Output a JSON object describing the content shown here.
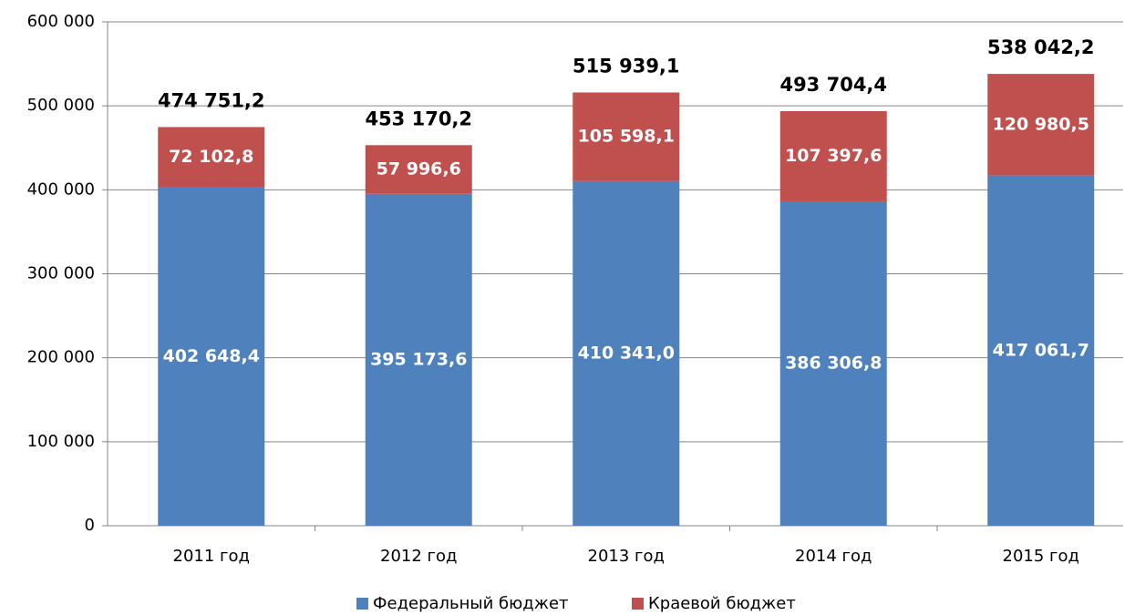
{
  "chart_data": {
    "type": "stacked_bar",
    "categories": [
      "2011 год",
      "2012 год",
      "2013 год",
      "2014 год",
      "2015 год"
    ],
    "series": [
      {
        "name": "Федеральный бюджет",
        "color": "#4f81bd",
        "values": [
          402648.4,
          395173.6,
          410341.0,
          386306.8,
          417061.7
        ],
        "value_labels": [
          "402 648,4",
          "395 173,6",
          "410 341,0",
          "386 306,8",
          "417 061,7"
        ]
      },
      {
        "name": "Краевой бюджет",
        "color": "#c0504d",
        "values": [
          72102.8,
          57996.6,
          105598.1,
          107397.6,
          120980.5
        ],
        "value_labels": [
          "72 102,8",
          "57 996,6",
          "105 598,1",
          "107 397,6",
          "120 980,5"
        ]
      }
    ],
    "totals": [
      474751.2,
      453170.2,
      515939.1,
      493704.4,
      538042.2
    ],
    "total_labels": [
      "474 751,2",
      "453 170,2",
      "515 939,1",
      "493 704,4",
      "538 042,2"
    ],
    "ylim": [
      0,
      600000
    ],
    "yticks": [
      0,
      {
        "value": 100000,
        "label": "100 000"
      },
      {
        "value": 200000,
        "label": "200 000"
      },
      {
        "value": 300000,
        "label": "300 000"
      },
      {
        "value": 400000,
        "label": "400 000"
      },
      {
        "value": 500000,
        "label": "500 000"
      },
      {
        "value": 600000,
        "label": "600 000"
      }
    ],
    "grid": true,
    "legend": "bottom"
  }
}
